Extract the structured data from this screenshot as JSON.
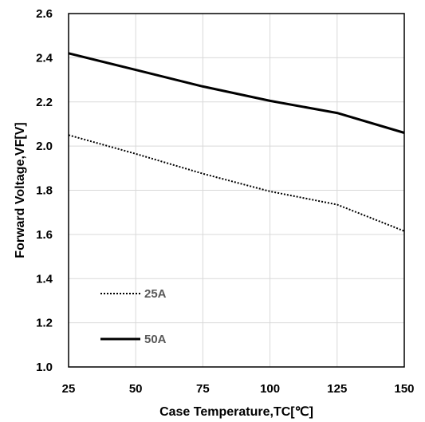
{
  "chart_data": {
    "type": "line",
    "xlabel": "Case Temperature,TC[℃]",
    "ylabel": "Forward Voltage,VF[V]",
    "xlim": [
      25,
      150
    ],
    "ylim": [
      1.0,
      2.6
    ],
    "x_ticks": [
      "25",
      "50",
      "75",
      "100",
      "125",
      "150"
    ],
    "y_ticks": [
      "1.0",
      "1.2",
      "1.4",
      "1.6",
      "1.8",
      "2.0",
      "2.2",
      "2.4",
      "2.6"
    ],
    "grid": true,
    "legend_position": "bottom-left",
    "series": [
      {
        "name": "25A",
        "style": "dotted",
        "color": "#000000",
        "x": [
          25,
          50,
          75,
          100,
          125,
          150
        ],
        "y": [
          2.05,
          1.965,
          1.875,
          1.795,
          1.735,
          1.615
        ]
      },
      {
        "name": "50A",
        "style": "solid",
        "color": "#000000",
        "x": [
          25,
          50,
          75,
          100,
          125,
          150
        ],
        "y": [
          2.42,
          2.345,
          2.27,
          2.205,
          2.15,
          2.06
        ]
      }
    ]
  }
}
